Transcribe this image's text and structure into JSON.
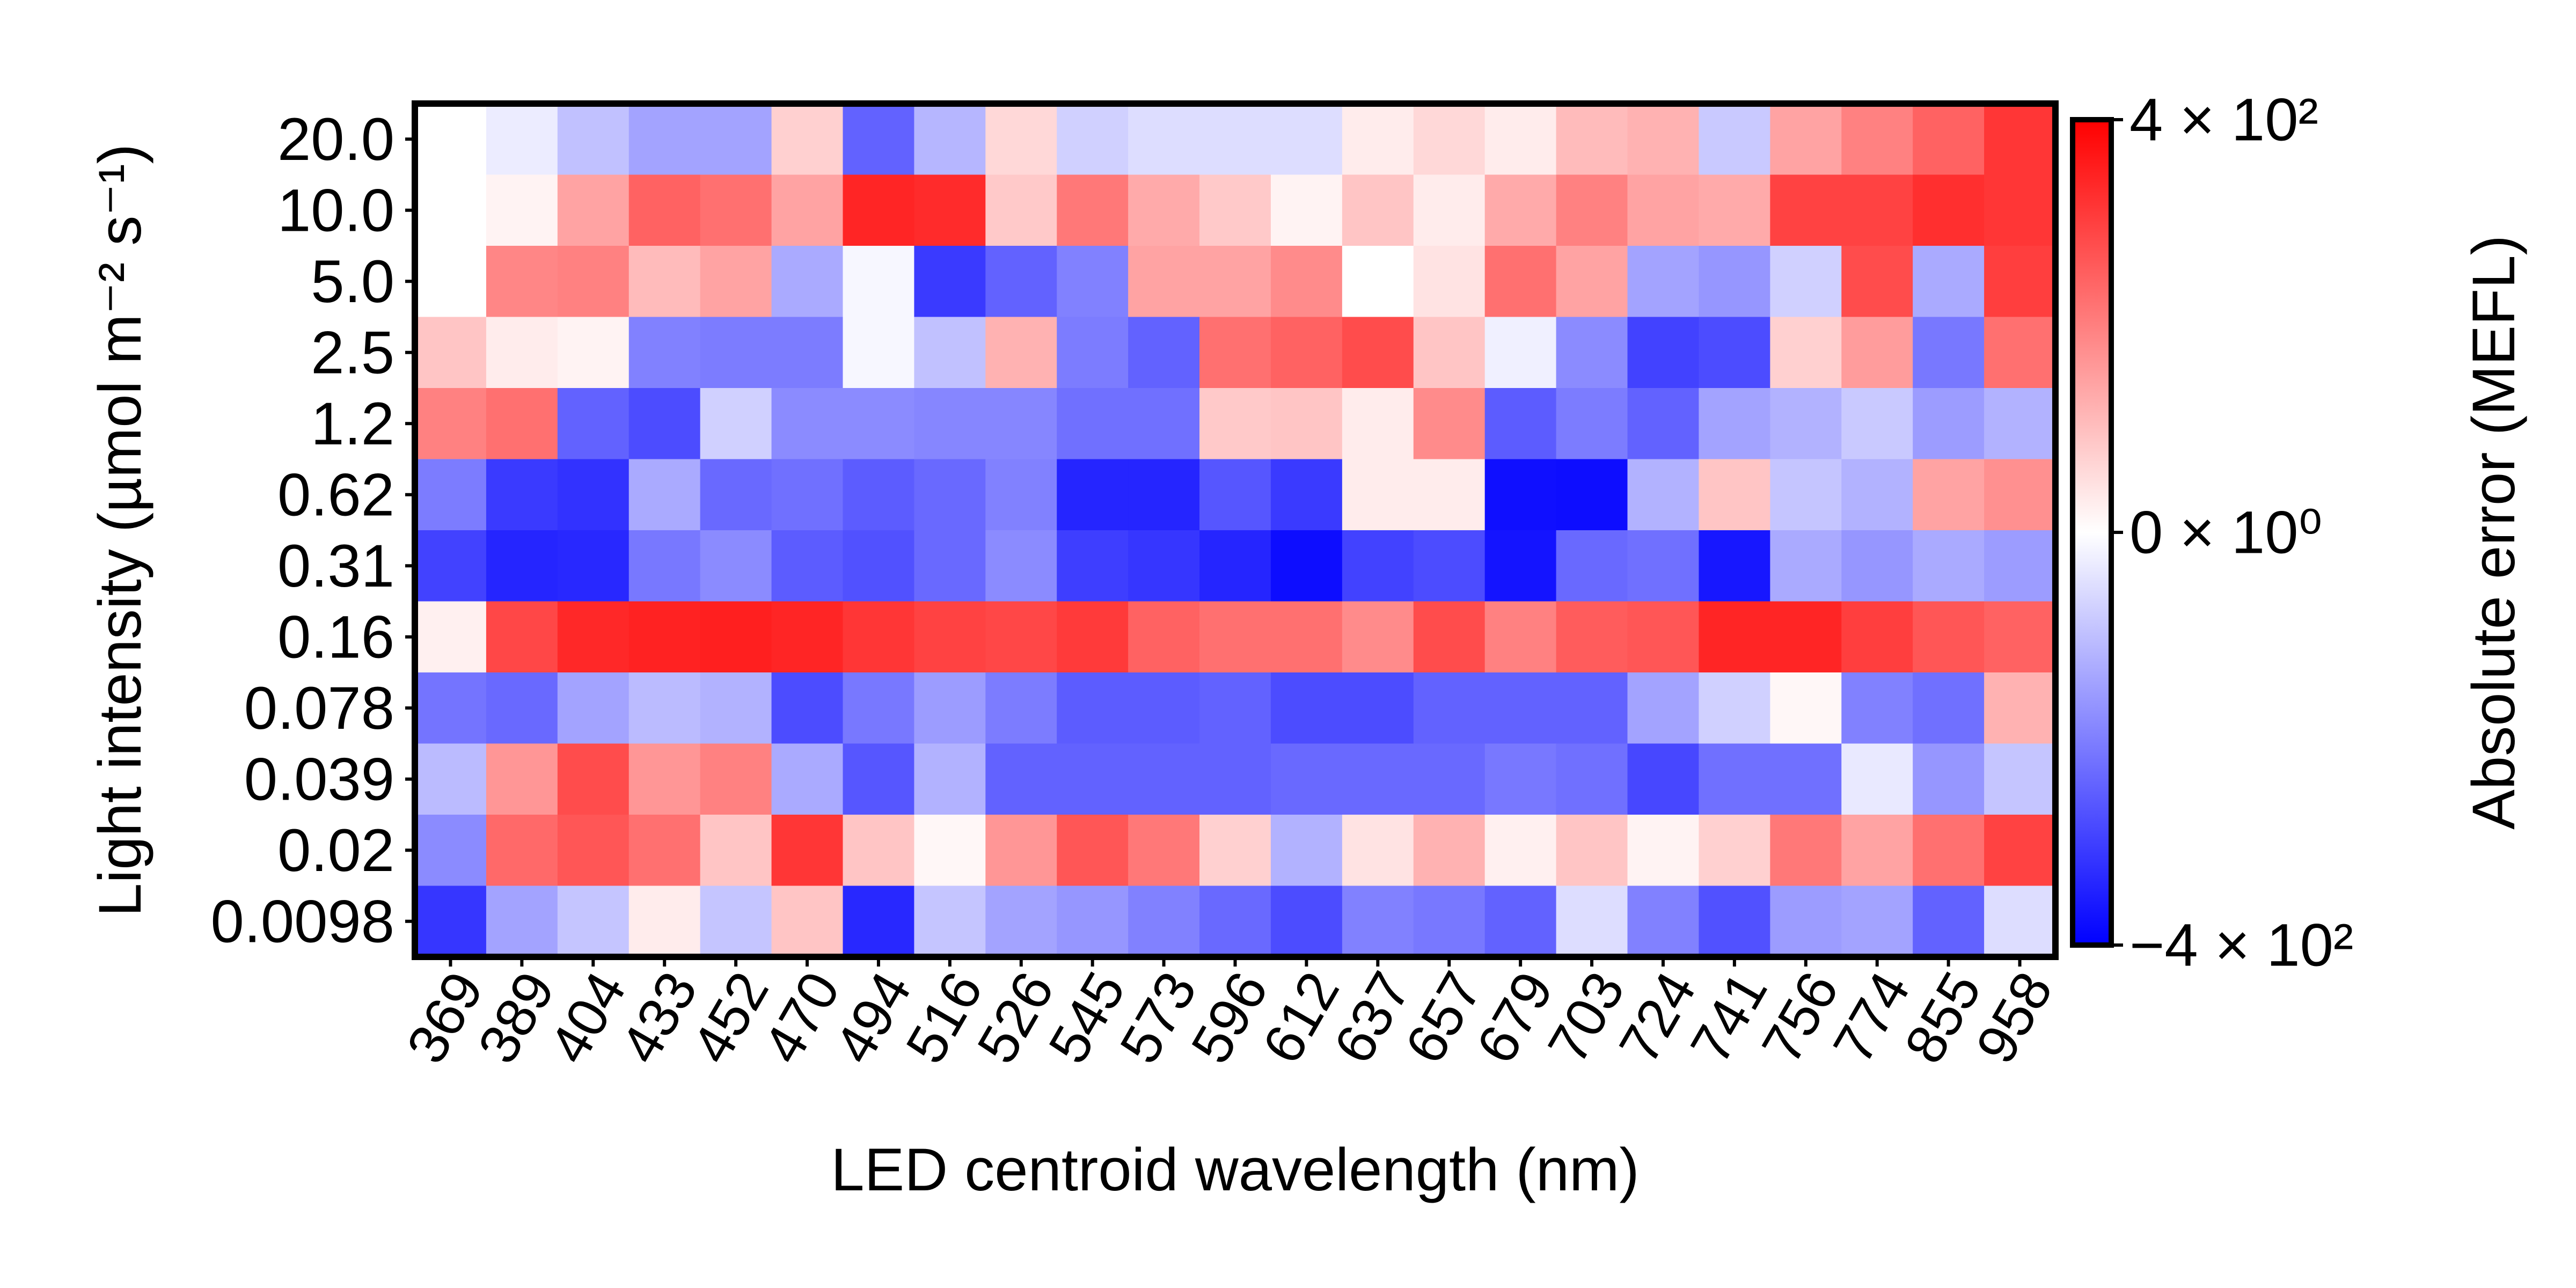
{
  "chart_data": {
    "type": "heatmap",
    "title": "",
    "xlabel": "LED centroid wavelength (nm)",
    "ylabel": "Light intensity (µmol m⁻² s⁻¹)",
    "x_categories": [
      "369",
      "389",
      "404",
      "433",
      "452",
      "470",
      "494",
      "516",
      "526",
      "545",
      "573",
      "596",
      "612",
      "637",
      "657",
      "679",
      "703",
      "724",
      "741",
      "756",
      "774",
      "855",
      "958"
    ],
    "y_categories": [
      "20.0",
      "10.0",
      "5.0",
      "2.5",
      "1.2",
      "0.62",
      "0.31",
      "0.16",
      "0.078",
      "0.039",
      "0.02",
      "0.0098"
    ],
    "colorbar": {
      "label": "Absolute error (MEFL)",
      "scale": "symlog",
      "vmin": -400,
      "vmax": 400,
      "colormap": "bwr",
      "ticks": [
        {
          "value": 400,
          "label": "4 × 10²"
        },
        {
          "value": 0,
          "label": "0 × 10⁰"
        },
        {
          "value": -400,
          "label": "−4 × 10²"
        }
      ]
    },
    "values": [
      [
        0,
        -5,
        -22,
        -40,
        -40,
        15,
        -110,
        -28,
        12,
        -15,
        -10,
        -10,
        -10,
        5,
        12,
        5,
        25,
        30,
        -18,
        40,
        70,
        110,
        200
      ],
      [
        0,
        3,
        40,
        110,
        90,
        40,
        250,
        230,
        18,
        80,
        35,
        18,
        3,
        20,
        5,
        35,
        70,
        40,
        35,
        170,
        170,
        220,
        200
      ],
      [
        0,
        65,
        70,
        25,
        40,
        -35,
        -2,
        -190,
        -110,
        -70,
        40,
        40,
        60,
        0,
        8,
        90,
        40,
        -40,
        -50,
        -15,
        150,
        -35,
        180
      ],
      [
        20,
        5,
        3,
        -70,
        -75,
        -75,
        -2,
        -22,
        30,
        -75,
        -110,
        90,
        110,
        150,
        20,
        -4,
        -60,
        -170,
        -150,
        15,
        45,
        -80,
        90
      ],
      [
        70,
        90,
        -110,
        -150,
        -15,
        -60,
        -60,
        -65,
        -65,
        -90,
        -90,
        18,
        20,
        5,
        60,
        -120,
        -75,
        -110,
        -40,
        -30,
        -18,
        -45,
        -30
      ],
      [
        -75,
        -190,
        -210,
        -35,
        -100,
        -90,
        -120,
        -100,
        -70,
        -250,
        -250,
        -130,
        -190,
        5,
        5,
        -330,
        -340,
        -30,
        20,
        -20,
        -30,
        40,
        55
      ],
      [
        -170,
        -250,
        -240,
        -80,
        -60,
        -120,
        -140,
        -100,
        -60,
        -180,
        -200,
        -250,
        -340,
        -170,
        -150,
        -310,
        -100,
        -90,
        -300,
        -35,
        -50,
        -35,
        -45
      ],
      [
        4,
        160,
        240,
        260,
        270,
        250,
        200,
        170,
        160,
        190,
        110,
        90,
        90,
        60,
        150,
        70,
        120,
        130,
        250,
        250,
        180,
        130,
        110
      ],
      [
        -85,
        -100,
        -40,
        -25,
        -30,
        -150,
        -80,
        -45,
        -75,
        -120,
        -120,
        -110,
        -150,
        -150,
        -110,
        -110,
        -110,
        -40,
        -15,
        2,
        -70,
        -90,
        30
      ],
      [
        -25,
        50,
        150,
        50,
        70,
        -35,
        -130,
        -30,
        -110,
        -110,
        -110,
        -110,
        -100,
        -100,
        -100,
        -80,
        -90,
        -160,
        -90,
        -90,
        -6,
        -50,
        -20
      ],
      [
        -60,
        100,
        130,
        90,
        20,
        200,
        20,
        2,
        50,
        130,
        80,
        15,
        -30,
        8,
        30,
        4,
        20,
        3,
        15,
        80,
        40,
        90,
        170
      ],
      [
        -200,
        -40,
        -20,
        5,
        -20,
        20,
        -240,
        -20,
        -40,
        -50,
        -70,
        -100,
        -150,
        -70,
        -80,
        -110,
        -10,
        -70,
        -140,
        -45,
        -40,
        -110,
        -10
      ]
    ]
  }
}
